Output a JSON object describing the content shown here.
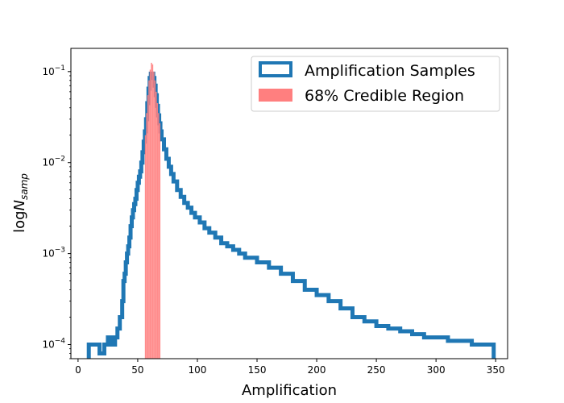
{
  "chart_data": {
    "type": "histogram",
    "xlabel": "Amplification",
    "ylabel_base": "log",
    "ylabel_var": "N",
    "ylabel_sub": "samp",
    "yscale": "log",
    "xlim": [
      -6,
      360
    ],
    "ylim": [
      7e-05,
      0.18
    ],
    "x_ticks": [
      0,
      50,
      100,
      150,
      200,
      250,
      300,
      350
    ],
    "x_tick_labels": [
      "0",
      "50",
      "100",
      "150",
      "200",
      "250",
      "300",
      "350"
    ],
    "y_ticks": [
      0.0001,
      0.001,
      0.01,
      0.1
    ],
    "y_tick_labels": [
      {
        "base": "10",
        "exp": "−4"
      },
      {
        "base": "10",
        "exp": "−3"
      },
      {
        "base": "10",
        "exp": "−2"
      },
      {
        "base": "10",
        "exp": "−1"
      }
    ],
    "legend": {
      "placement": "top-right",
      "entries": [
        {
          "label": "Amplification Samples",
          "style": "step-outline",
          "color": "#1f77b4"
        },
        {
          "label": "68% Credible Region",
          "style": "filled",
          "color": "#ff7f7f"
        }
      ]
    },
    "samples": {
      "name": "Amplification Samples",
      "color": "#1f77b4",
      "points": [
        [
          9,
          0.0001
        ],
        [
          13,
          0.0001
        ],
        [
          18,
          8e-05
        ],
        [
          22,
          0.0001
        ],
        [
          25,
          0.00012
        ],
        [
          28,
          0.0001
        ],
        [
          31,
          0.00012
        ],
        [
          33,
          0.00015
        ],
        [
          35,
          0.0002
        ],
        [
          37,
          0.0003
        ],
        [
          38,
          0.0005
        ],
        [
          39,
          0.0006
        ],
        [
          40,
          0.0008
        ],
        [
          41,
          0.001
        ],
        [
          42,
          0.0012
        ],
        [
          43,
          0.0015
        ],
        [
          44,
          0.002
        ],
        [
          45,
          0.0025
        ],
        [
          46,
          0.003
        ],
        [
          47,
          0.0035
        ],
        [
          48,
          0.004
        ],
        [
          49,
          0.005
        ],
        [
          50,
          0.006
        ],
        [
          51,
          0.007
        ],
        [
          52,
          0.008
        ],
        [
          53,
          0.01
        ],
        [
          54,
          0.013
        ],
        [
          55,
          0.017
        ],
        [
          56,
          0.022
        ],
        [
          57,
          0.03
        ],
        [
          58,
          0.045
        ],
        [
          59,
          0.065
        ],
        [
          60,
          0.085
        ],
        [
          61,
          0.095
        ],
        [
          62,
          0.095
        ],
        [
          63,
          0.085
        ],
        [
          64,
          0.07
        ],
        [
          65,
          0.055
        ],
        [
          66,
          0.042
        ],
        [
          67,
          0.033
        ],
        [
          68,
          0.027
        ],
        [
          69,
          0.022
        ],
        [
          70,
          0.018
        ],
        [
          72,
          0.014
        ],
        [
          74,
          0.011
        ],
        [
          76,
          0.009
        ],
        [
          78,
          0.0075
        ],
        [
          80,
          0.0062
        ],
        [
          83,
          0.005
        ],
        [
          86,
          0.0042
        ],
        [
          89,
          0.0036
        ],
        [
          92,
          0.0032
        ],
        [
          95,
          0.0028
        ],
        [
          98,
          0.0025
        ],
        [
          102,
          0.0022
        ],
        [
          106,
          0.0019
        ],
        [
          110,
          0.0017
        ],
        [
          115,
          0.0015
        ],
        [
          120,
          0.0013
        ],
        [
          125,
          0.0012
        ],
        [
          130,
          0.0011
        ],
        [
          135,
          0.001
        ],
        [
          140,
          0.0009
        ],
        [
          150,
          0.0008
        ],
        [
          160,
          0.0007
        ],
        [
          170,
          0.0006
        ],
        [
          180,
          0.0005
        ],
        [
          190,
          0.0004
        ],
        [
          200,
          0.00035
        ],
        [
          210,
          0.0003
        ],
        [
          220,
          0.00025
        ],
        [
          230,
          0.0002
        ],
        [
          240,
          0.00018
        ],
        [
          250,
          0.00016
        ],
        [
          260,
          0.00015
        ],
        [
          270,
          0.00014
        ],
        [
          280,
          0.00013
        ],
        [
          290,
          0.00012
        ],
        [
          300,
          0.00012
        ],
        [
          310,
          0.00011
        ],
        [
          320,
          0.00011
        ],
        [
          330,
          0.0001
        ],
        [
          340,
          0.0001
        ],
        [
          347,
          0.0001
        ]
      ]
    },
    "credible_region": {
      "name": "68% Credible Region",
      "color": "#ff7f7f",
      "points": [
        [
          56,
          0.02
        ],
        [
          57,
          0.035
        ],
        [
          58,
          0.055
        ],
        [
          59,
          0.08
        ],
        [
          60,
          0.105
        ],
        [
          61,
          0.125
        ],
        [
          62,
          0.12
        ],
        [
          63,
          0.1
        ],
        [
          64,
          0.08
        ],
        [
          65,
          0.06
        ],
        [
          66,
          0.045
        ],
        [
          67,
          0.035
        ],
        [
          68,
          0.027
        ]
      ]
    }
  }
}
